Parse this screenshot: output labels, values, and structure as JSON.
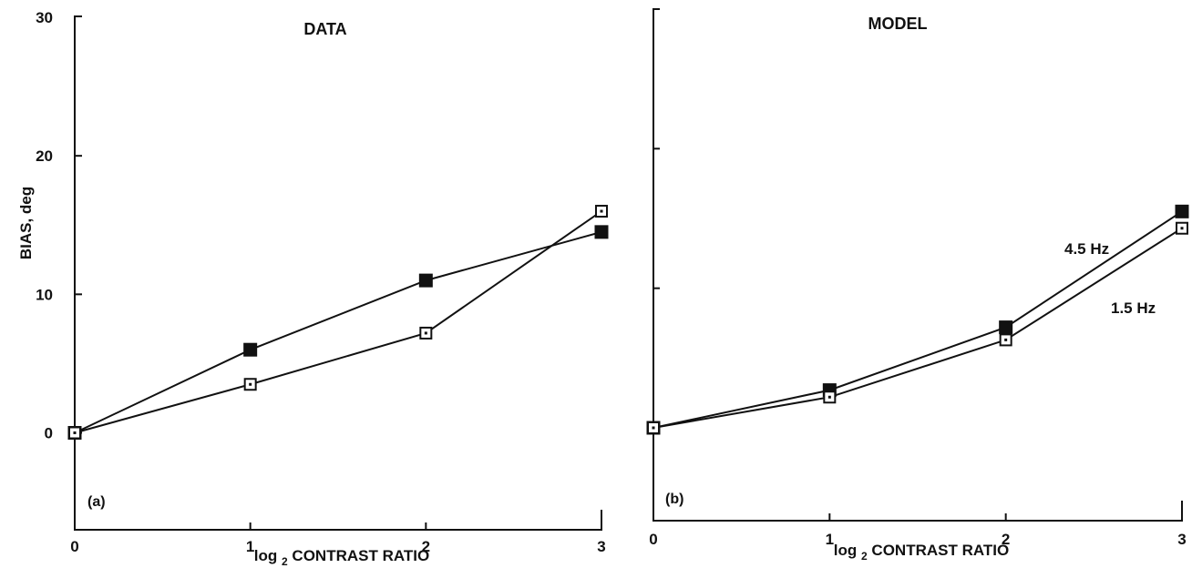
{
  "chart_data": [
    {
      "type": "line",
      "panel": "(a)",
      "title": "DATA",
      "xlabel_main": "log",
      "xlabel_sub": "2",
      "xlabel_rest": "CONTRAST RATIO",
      "ylabel": "BIAS, deg",
      "xlim": [
        0,
        3
      ],
      "ylim": [
        -5,
        30
      ],
      "xticks": [
        0,
        1,
        2,
        3
      ],
      "yticks": [
        0,
        10,
        20,
        30
      ],
      "series": [
        {
          "marker": "filled-square",
          "x": [
            0,
            1,
            2,
            3
          ],
          "y": [
            0,
            6,
            11,
            14.5
          ]
        },
        {
          "marker": "open-square",
          "x": [
            0,
            1,
            2,
            3
          ],
          "y": [
            0,
            3.5,
            7.2,
            16
          ]
        }
      ]
    },
    {
      "type": "line",
      "panel": "(b)",
      "title": "MODEL",
      "xlabel_main": "log",
      "xlabel_sub": "2",
      "xlabel_rest": "CONTRAST RATIO",
      "xlim": [
        0,
        3
      ],
      "ylim": [
        -5,
        30
      ],
      "xticks": [
        0,
        1,
        2,
        3
      ],
      "yticks": [
        0,
        10,
        20,
        30
      ],
      "series": [
        {
          "name": "4.5 Hz",
          "marker": "filled-square",
          "x": [
            0,
            1,
            2,
            3
          ],
          "y": [
            0,
            2.7,
            7.2,
            15.5
          ]
        },
        {
          "name": "1.5 Hz",
          "marker": "open-square",
          "x": [
            0,
            1,
            2,
            3
          ],
          "y": [
            0,
            2.2,
            6.3,
            14.3
          ]
        }
      ]
    }
  ]
}
